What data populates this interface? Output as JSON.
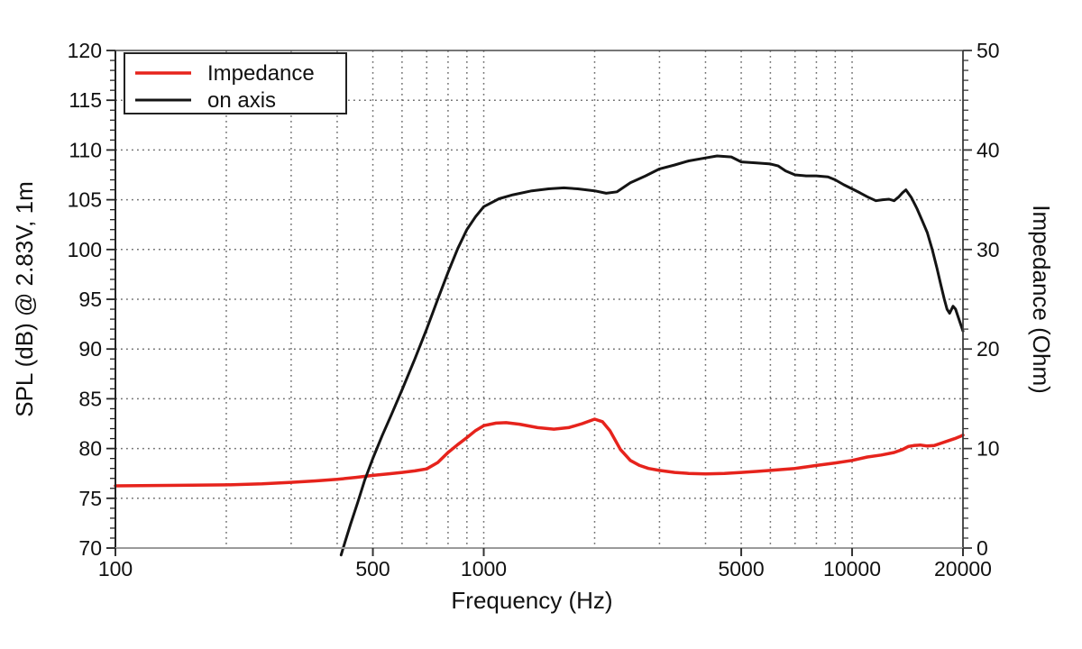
{
  "chart_data": {
    "type": "line",
    "title": "",
    "xlabel": "Frequency (Hz)",
    "ylabel_left": "SPL (dB) @ 2.83V, 1m",
    "ylabel_right": "Impedance (Ohm)",
    "x_axis": {
      "scale": "log",
      "min": 100,
      "max": 20000,
      "tick_values": [
        100,
        500,
        1000,
        5000,
        10000,
        20000
      ],
      "tick_labels": [
        "100",
        "500",
        "1000",
        "5000",
        "10000",
        "20000"
      ],
      "grid_values": [
        200,
        300,
        400,
        500,
        600,
        700,
        800,
        900,
        1000,
        2000,
        3000,
        4000,
        5000,
        6000,
        7000,
        8000,
        9000,
        10000
      ]
    },
    "y_left_axis": {
      "min": 70,
      "max": 120,
      "minor_step": 1,
      "major_step": 5,
      "tick_labels": [
        "70",
        "75",
        "80",
        "85",
        "90",
        "95",
        "100",
        "105",
        "110",
        "115",
        "120"
      ],
      "grid_values": [
        75,
        80,
        85,
        90,
        95,
        100,
        105,
        110,
        115
      ]
    },
    "y_right_axis": {
      "min": 0,
      "max": 50,
      "minor_step": 1,
      "major_step": 10,
      "tick_labels": [
        "0",
        "10",
        "20",
        "30",
        "40",
        "50"
      ]
    },
    "grid": true,
    "legend_position": "top-left",
    "colors": {
      "background": "#ffffff",
      "grid": "#6e6e6e",
      "frame_left": "#222222",
      "frame_top": "#4a4a4a",
      "frame_right": "#3a3a3a",
      "frame_bottom": "#9a9a9a",
      "tick": "#333333",
      "text": "#111111"
    },
    "series": [
      {
        "name": "Impedance",
        "axis": "right",
        "unit": "Ohm",
        "color": "#e6231c",
        "points": [
          [
            100,
            6.25
          ],
          [
            150,
            6.3
          ],
          [
            200,
            6.35
          ],
          [
            250,
            6.45
          ],
          [
            300,
            6.6
          ],
          [
            350,
            6.75
          ],
          [
            400,
            6.9
          ],
          [
            450,
            7.1
          ],
          [
            500,
            7.3
          ],
          [
            550,
            7.45
          ],
          [
            600,
            7.6
          ],
          [
            650,
            7.75
          ],
          [
            700,
            7.95
          ],
          [
            750,
            8.6
          ],
          [
            800,
            9.6
          ],
          [
            850,
            10.4
          ],
          [
            900,
            11.1
          ],
          [
            950,
            11.8
          ],
          [
            1000,
            12.3
          ],
          [
            1080,
            12.55
          ],
          [
            1150,
            12.6
          ],
          [
            1250,
            12.45
          ],
          [
            1400,
            12.1
          ],
          [
            1550,
            11.95
          ],
          [
            1700,
            12.1
          ],
          [
            1850,
            12.5
          ],
          [
            2000,
            12.95
          ],
          [
            2100,
            12.7
          ],
          [
            2200,
            11.8
          ],
          [
            2350,
            9.9
          ],
          [
            2500,
            8.8
          ],
          [
            2650,
            8.3
          ],
          [
            2800,
            8.0
          ],
          [
            3000,
            7.8
          ],
          [
            3300,
            7.6
          ],
          [
            3600,
            7.5
          ],
          [
            4000,
            7.45
          ],
          [
            4500,
            7.5
          ],
          [
            5000,
            7.6
          ],
          [
            5500,
            7.7
          ],
          [
            6000,
            7.8
          ],
          [
            6500,
            7.9
          ],
          [
            7000,
            8.0
          ],
          [
            7500,
            8.15
          ],
          [
            8000,
            8.3
          ],
          [
            9000,
            8.55
          ],
          [
            10000,
            8.8
          ],
          [
            11000,
            9.15
          ],
          [
            12000,
            9.35
          ],
          [
            13000,
            9.6
          ],
          [
            13700,
            9.9
          ],
          [
            14200,
            10.2
          ],
          [
            14700,
            10.3
          ],
          [
            15300,
            10.35
          ],
          [
            16000,
            10.25
          ],
          [
            16700,
            10.3
          ],
          [
            17500,
            10.55
          ],
          [
            18300,
            10.8
          ],
          [
            19000,
            11.0
          ],
          [
            19600,
            11.2
          ],
          [
            20000,
            11.35
          ]
        ]
      },
      {
        "name": "on axis",
        "axis": "left",
        "unit": "dB",
        "color": "#141414",
        "points": [
          [
            410,
            69.3
          ],
          [
            420,
            70.6
          ],
          [
            435,
            72.4
          ],
          [
            455,
            74.6
          ],
          [
            475,
            76.8
          ],
          [
            500,
            79.0
          ],
          [
            530,
            81.3
          ],
          [
            560,
            83.3
          ],
          [
            600,
            85.9
          ],
          [
            650,
            89.0
          ],
          [
            700,
            92.0
          ],
          [
            750,
            95.0
          ],
          [
            800,
            97.7
          ],
          [
            850,
            100.1
          ],
          [
            900,
            102.0
          ],
          [
            950,
            103.3
          ],
          [
            1000,
            104.3
          ],
          [
            1100,
            105.1
          ],
          [
            1200,
            105.5
          ],
          [
            1350,
            105.9
          ],
          [
            1500,
            106.1
          ],
          [
            1650,
            106.2
          ],
          [
            1800,
            106.1
          ],
          [
            2000,
            105.9
          ],
          [
            2150,
            105.65
          ],
          [
            2300,
            105.8
          ],
          [
            2500,
            106.7
          ],
          [
            2750,
            107.4
          ],
          [
            3000,
            108.1
          ],
          [
            3300,
            108.5
          ],
          [
            3600,
            108.9
          ],
          [
            4000,
            109.2
          ],
          [
            4300,
            109.4
          ],
          [
            4700,
            109.3
          ],
          [
            5000,
            108.8
          ],
          [
            5500,
            108.7
          ],
          [
            6000,
            108.6
          ],
          [
            6300,
            108.4
          ],
          [
            6600,
            107.9
          ],
          [
            7000,
            107.5
          ],
          [
            7500,
            107.4
          ],
          [
            8000,
            107.4
          ],
          [
            8600,
            107.3
          ],
          [
            9000,
            107.0
          ],
          [
            9500,
            106.5
          ],
          [
            10000,
            106.1
          ],
          [
            10500,
            105.7
          ],
          [
            11000,
            105.3
          ],
          [
            11600,
            104.9
          ],
          [
            12100,
            105.0
          ],
          [
            12600,
            105.05
          ],
          [
            13000,
            104.9
          ],
          [
            13400,
            105.3
          ],
          [
            13700,
            105.7
          ],
          [
            14000,
            106.0
          ],
          [
            14500,
            105.2
          ],
          [
            15000,
            104.1
          ],
          [
            15500,
            102.9
          ],
          [
            16000,
            101.7
          ],
          [
            16500,
            100.0
          ],
          [
            17000,
            98.1
          ],
          [
            17400,
            96.5
          ],
          [
            17800,
            95.0
          ],
          [
            18100,
            94.0
          ],
          [
            18400,
            93.6
          ],
          [
            18800,
            94.3
          ],
          [
            19100,
            94.0
          ],
          [
            19500,
            93.0
          ],
          [
            20000,
            91.8
          ]
        ]
      }
    ]
  }
}
